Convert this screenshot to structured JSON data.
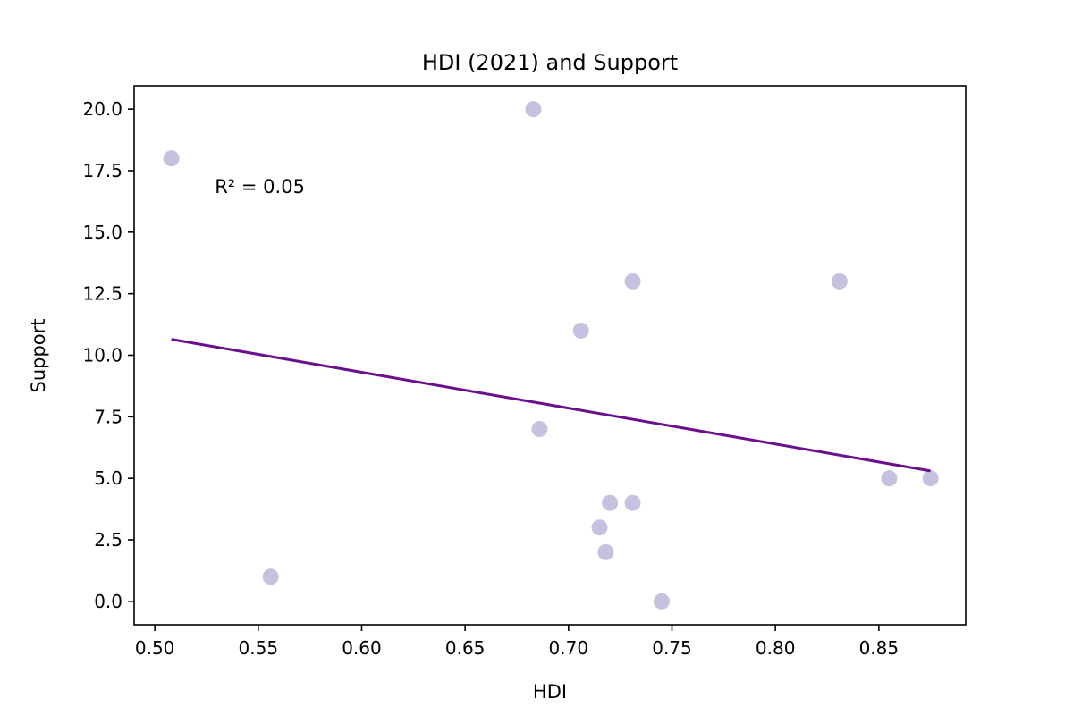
{
  "chart_data": {
    "type": "scatter",
    "title": "HDI (2021) and Support",
    "xlabel": "HDI",
    "ylabel": "Support",
    "xlim": [
      0.49,
      0.892
    ],
    "ylim": [
      -0.95,
      20.95
    ],
    "xticks": [
      0.5,
      0.55,
      0.6,
      0.65,
      0.7,
      0.75,
      0.8,
      0.85
    ],
    "xtick_labels": [
      "0.50",
      "0.55",
      "0.60",
      "0.65",
      "0.70",
      "0.75",
      "0.80",
      "0.85"
    ],
    "yticks": [
      0.0,
      2.5,
      5.0,
      7.5,
      10.0,
      12.5,
      15.0,
      17.5,
      20.0
    ],
    "ytick_labels": [
      "0.0",
      "2.5",
      "5.0",
      "7.5",
      "10.0",
      "12.5",
      "15.0",
      "17.5",
      "20.0"
    ],
    "grid": false,
    "points": [
      {
        "x": 0.508,
        "y": 18
      },
      {
        "x": 0.556,
        "y": 1
      },
      {
        "x": 0.683,
        "y": 20
      },
      {
        "x": 0.686,
        "y": 7
      },
      {
        "x": 0.706,
        "y": 11
      },
      {
        "x": 0.715,
        "y": 3
      },
      {
        "x": 0.718,
        "y": 2
      },
      {
        "x": 0.72,
        "y": 4
      },
      {
        "x": 0.731,
        "y": 13
      },
      {
        "x": 0.731,
        "y": 4
      },
      {
        "x": 0.745,
        "y": 0
      },
      {
        "x": 0.831,
        "y": 13
      },
      {
        "x": 0.855,
        "y": 5
      },
      {
        "x": 0.875,
        "y": 5
      }
    ],
    "trendline": {
      "x": [
        0.508,
        0.875
      ],
      "y": [
        10.65,
        5.3
      ]
    },
    "annotation": {
      "text": "R² = 0.05",
      "x": 0.529,
      "y": 16.6
    },
    "colors": {
      "points": "#c7c1e0",
      "trendline": "#6a0f8e",
      "axes": "#000000",
      "background": "#ffffff"
    }
  }
}
